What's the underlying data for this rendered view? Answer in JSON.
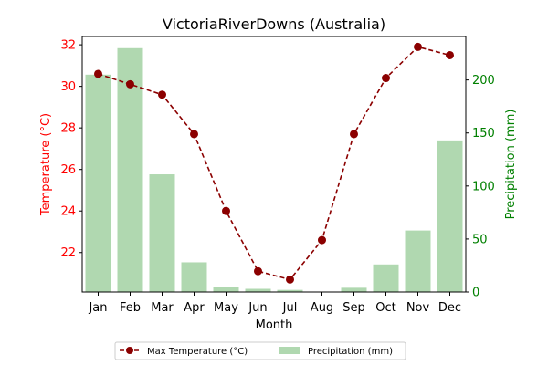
{
  "chart_data": {
    "type": "bar+line",
    "title": "VictoriaRiverDowns (Australia)",
    "xlabel": "Month",
    "categories": [
      "Jan",
      "Feb",
      "Mar",
      "Apr",
      "May",
      "Jun",
      "Jul",
      "Aug",
      "Sep",
      "Oct",
      "Nov",
      "Dec"
    ],
    "left_axis": {
      "label": "Temperature (°C)",
      "ticks": [
        "22",
        "24",
        "26",
        "28",
        "30",
        "32"
      ],
      "ylim": [
        20.1,
        32.4
      ],
      "color": "#ff0000"
    },
    "right_axis": {
      "label": "Precipitation (mm)",
      "ticks": [
        "0",
        "50",
        "100",
        "150",
        "200"
      ],
      "ylim": [
        0,
        241
      ],
      "color": "#008000"
    },
    "series": [
      {
        "name": "Max Temperature (°C)",
        "kind": "line",
        "axis": "left",
        "color": "#8b0000",
        "linestyle": "dashed",
        "marker": "circle",
        "values": [
          30.6,
          30.1,
          29.6,
          27.7,
          24.0,
          21.1,
          20.7,
          22.6,
          27.7,
          30.4,
          31.9,
          31.5
        ]
      },
      {
        "name": "Precipitation (mm)",
        "kind": "bar",
        "axis": "right",
        "color": "#b0d8b0",
        "values": [
          205,
          230,
          111,
          28,
          5,
          3,
          2,
          0,
          4,
          26,
          58,
          143
        ]
      }
    ],
    "legend": {
      "placement": "bottom-center"
    }
  }
}
